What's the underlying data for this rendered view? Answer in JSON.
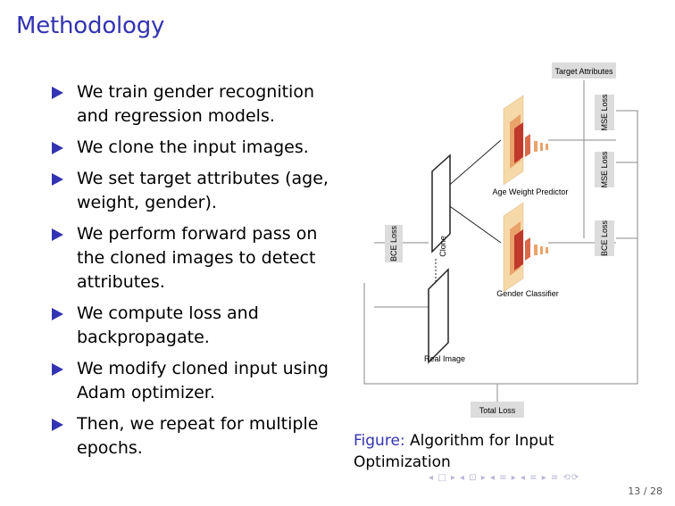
{
  "slide": {
    "title": "Methodology",
    "bullets": [
      "We train gender recognition and regression models.",
      "We clone the input images.",
      "We set target attributes (age, weight, gender).",
      "We perform forward pass on the cloned images to detect attributes.",
      "We compute loss and backpropagate.",
      "We modify cloned input using Adam optimizer.",
      "Then, we repeat for multiple epochs."
    ],
    "caption_label": "Figure:",
    "caption_text": "Algorithm for Input Optimization",
    "nav_symbols": "◂ □ ▸ ◂ ⊡ ▸ ◂ ≡ ▸ ◂ ≡ ▸   ≡   ⟲⟳",
    "page": "13 / 28"
  },
  "diagram": {
    "target_attributes": "Target Attributes",
    "mse_loss_1": "MSE Loss",
    "mse_loss_2": "MSE Loss",
    "bce_loss_right": "BCE Loss",
    "bce_loss_left": "BCE Loss",
    "clone": "Clone",
    "age_weight_predictor": "Age Weight Predictor",
    "gender_classifier": "Gender Classifier",
    "real_image": "Real Image",
    "total_loss": "Total Loss"
  },
  "colors": {
    "accent": "#3333b2",
    "label_box": "#dcdcdc",
    "net_light": "#f6d9a8",
    "net_dark": "#c0392b"
  }
}
